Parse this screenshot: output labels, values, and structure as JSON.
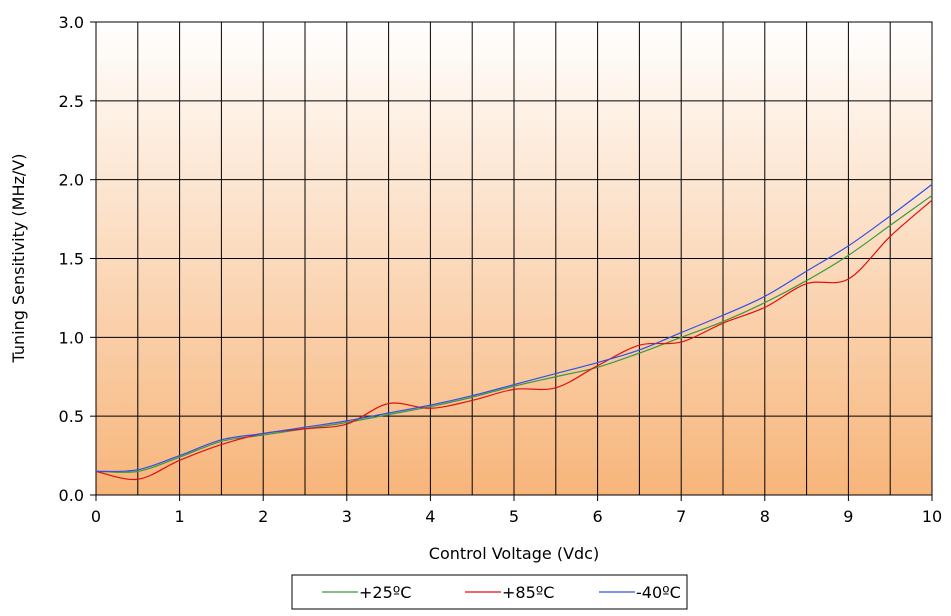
{
  "chart_data": {
    "type": "line",
    "xlabel": "Control Voltage (Vdc)",
    "ylabel": "Tuning Sensitivity (MHz/V)",
    "xlim": [
      0,
      10
    ],
    "ylim": [
      0,
      3.0
    ],
    "x_ticks": [
      "0",
      "1",
      "2",
      "3",
      "4",
      "5",
      "6",
      "7",
      "8",
      "9",
      "10"
    ],
    "y_ticks": [
      "0.0",
      "0.5",
      "1.0",
      "1.5",
      "2.0",
      "2.5",
      "3.0"
    ],
    "x_minor_step": 0.5,
    "grid": true,
    "legend_position": "bottom",
    "series": [
      {
        "name": "+25ºC",
        "color": "#3a9a3a",
        "x": [
          0,
          0.5,
          1,
          1.5,
          2,
          2.5,
          3,
          3.5,
          4,
          4.5,
          5,
          5.5,
          6,
          6.5,
          7,
          7.5,
          8,
          8.5,
          9,
          9.5,
          10
        ],
        "y": [
          0.15,
          0.15,
          0.24,
          0.34,
          0.38,
          0.42,
          0.46,
          0.51,
          0.56,
          0.62,
          0.69,
          0.75,
          0.81,
          0.9,
          1.0,
          1.1,
          1.22,
          1.36,
          1.52,
          1.71,
          1.9
        ]
      },
      {
        "name": "+85ºC",
        "color": "#e01010",
        "x": [
          0,
          0.5,
          1,
          1.5,
          2,
          2.5,
          3,
          3.5,
          4,
          4.5,
          5,
          5.5,
          6,
          6.5,
          7,
          7.5,
          8,
          8.5,
          9,
          9.5,
          10
        ],
        "y": [
          0.15,
          0.1,
          0.22,
          0.32,
          0.39,
          0.42,
          0.45,
          0.58,
          0.55,
          0.6,
          0.67,
          0.68,
          0.82,
          0.95,
          0.97,
          1.09,
          1.19,
          1.34,
          1.37,
          1.64,
          1.87
        ]
      },
      {
        "name": "-40ºC",
        "color": "#3050e8",
        "x": [
          0,
          0.5,
          1,
          1.5,
          2,
          2.5,
          3,
          3.5,
          4,
          4.5,
          5,
          5.5,
          6,
          6.5,
          7,
          7.5,
          8,
          8.5,
          9,
          9.5,
          10
        ],
        "y": [
          0.15,
          0.16,
          0.25,
          0.35,
          0.39,
          0.43,
          0.47,
          0.52,
          0.57,
          0.63,
          0.7,
          0.77,
          0.84,
          0.92,
          1.03,
          1.14,
          1.26,
          1.42,
          1.58,
          1.77,
          1.97
        ]
      }
    ]
  }
}
